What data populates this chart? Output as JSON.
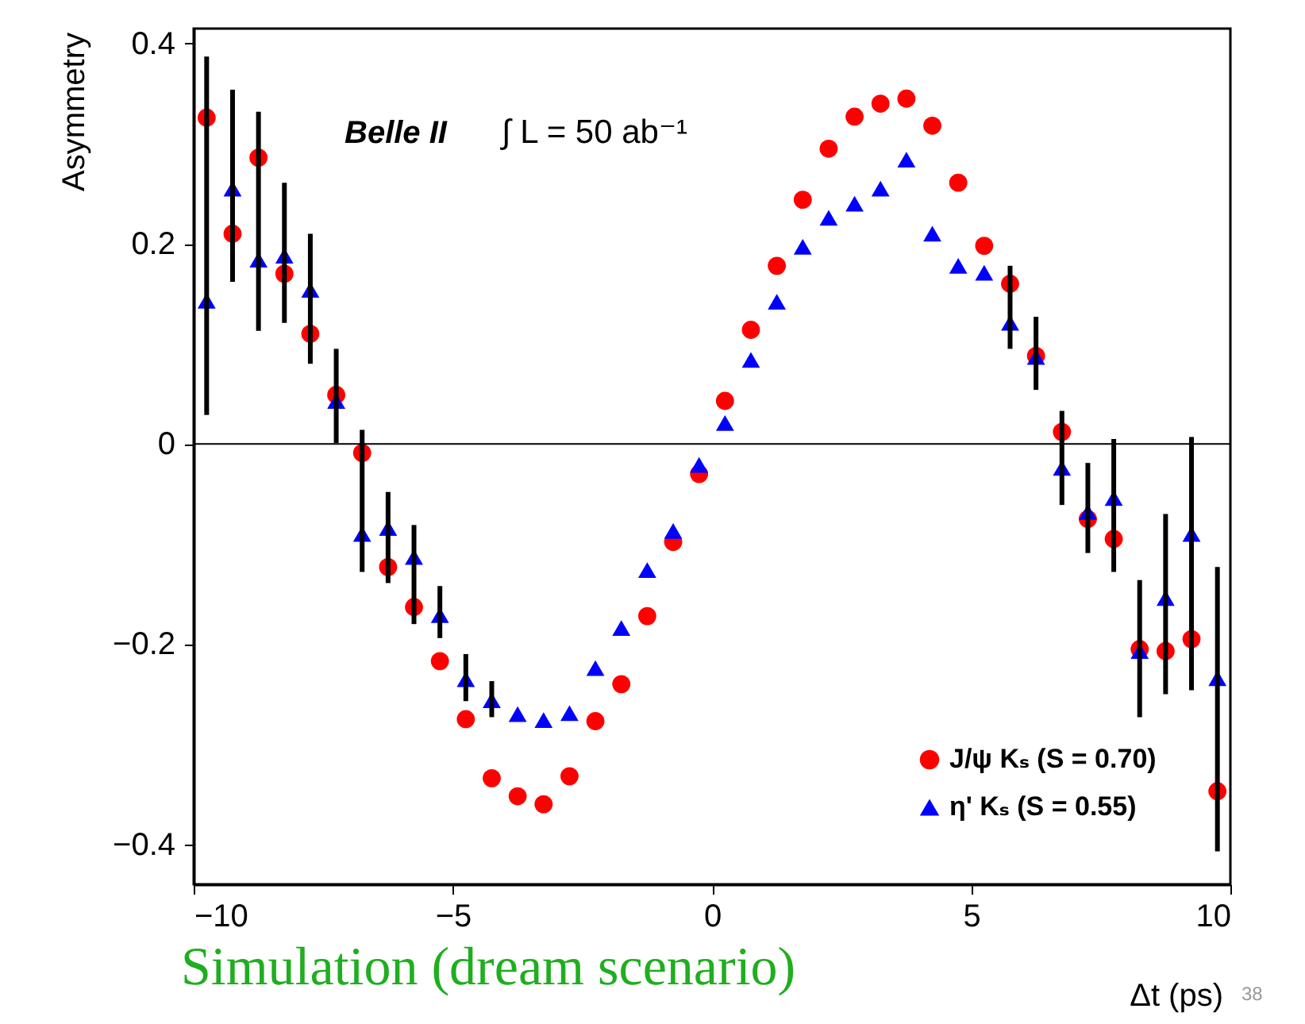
{
  "chart_data": {
    "type": "scatter",
    "xlabel": "Δt (ps)",
    "ylabel": "Asymmetry",
    "x": [
      -9.75,
      -9.25,
      -8.75,
      -8.25,
      -7.75,
      -7.25,
      -6.75,
      -6.25,
      -5.75,
      -5.25,
      -4.75,
      -4.25,
      -3.75,
      -3.25,
      -2.75,
      -2.25,
      -1.75,
      -1.25,
      -0.75,
      -0.25,
      0.25,
      0.75,
      1.25,
      1.75,
      2.25,
      2.75,
      3.25,
      3.75,
      4.25,
      4.75,
      5.25,
      5.75,
      6.25,
      6.75,
      7.25,
      7.75,
      8.25,
      8.75,
      9.25,
      9.75
    ],
    "series": [
      {
        "name": "J/ψ Kₛ  (S = 0.70)",
        "color": "#ff0000",
        "marker": "circle",
        "values": [
          0.326,
          0.21,
          0.286,
          0.17,
          0.11,
          0.049,
          -0.009,
          -0.123,
          -0.163,
          -0.217,
          -0.275,
          -0.334,
          -0.352,
          -0.36,
          -0.332,
          -0.277,
          -0.24,
          -0.172,
          -0.098,
          -0.03,
          0.043,
          0.114,
          0.178,
          0.244,
          0.295,
          0.327,
          0.34,
          0.345,
          0.318,
          0.261,
          0.198,
          0.16,
          0.088,
          0.012,
          -0.075,
          -0.095,
          -0.205,
          -0.207,
          -0.195,
          -0.347
        ]
      },
      {
        "name": "η' Kₛ     (S = 0.55)",
        "color": "#0000ff",
        "marker": "triangle",
        "values": [
          0.143,
          0.255,
          0.184,
          0.188,
          0.154,
          0.043,
          -0.09,
          -0.084,
          -0.113,
          -0.171,
          -0.235,
          -0.256,
          -0.27,
          -0.276,
          -0.269,
          -0.224,
          -0.184,
          -0.126,
          -0.087,
          -0.021,
          0.021,
          0.084,
          0.142,
          0.197,
          0.226,
          0.24,
          0.255,
          0.284,
          0.21,
          0.178,
          0.171,
          0.121,
          0.087,
          -0.024,
          -0.068,
          -0.054,
          -0.207,
          -0.154,
          -0.09,
          -0.234
        ],
        "errors": [
          [
            0.029,
            0.387
          ],
          [
            0.162,
            0.354
          ],
          [
            0.113,
            0.332
          ],
          [
            0.121,
            0.261
          ],
          [
            0.08,
            0.21
          ],
          [
            0.001,
            0.095
          ],
          [
            -0.128,
            0.014
          ],
          [
            -0.139,
            -0.048
          ],
          [
            -0.18,
            -0.081
          ],
          [
            -0.194,
            -0.142
          ],
          [
            -0.257,
            -0.21
          ],
          [
            -0.273,
            -0.237
          ],
          null,
          null,
          null,
          null,
          null,
          null,
          null,
          null,
          null,
          null,
          null,
          null,
          null,
          null,
          null,
          null,
          null,
          null,
          null,
          [
            0.095,
            0.178
          ],
          [
            0.054,
            0.127
          ],
          [
            -0.061,
            0.033
          ],
          [
            -0.109,
            -0.019
          ],
          [
            -0.128,
            0.005
          ],
          [
            -0.273,
            -0.136
          ],
          [
            -0.25,
            -0.07
          ],
          [
            -0.246,
            0.007
          ],
          [
            -0.407,
            -0.123
          ]
        ]
      }
    ],
    "xlim": [
      -10,
      10
    ],
    "xticks": [
      -10,
      -5,
      0,
      5,
      10
    ],
    "ylim": [
      -0.44,
      0.415
    ],
    "yticks": [
      {
        "value": -0.4,
        "label": "−0.4"
      },
      {
        "value": -0.2,
        "label": "−0.2"
      },
      {
        "value": 0,
        "label": "0"
      },
      {
        "value": 0.2,
        "label": "0.2"
      },
      {
        "value": 0.4,
        "label": "0.4"
      }
    ],
    "ref_lines": [
      {
        "axis": "y",
        "value": 0,
        "color": "#000000"
      }
    ],
    "legend": "bottom right",
    "annotations": [
      "Belle II",
      "∫ L = 50 ab⁻¹",
      "Simulation (dream scenario)",
      "38"
    ]
  }
}
